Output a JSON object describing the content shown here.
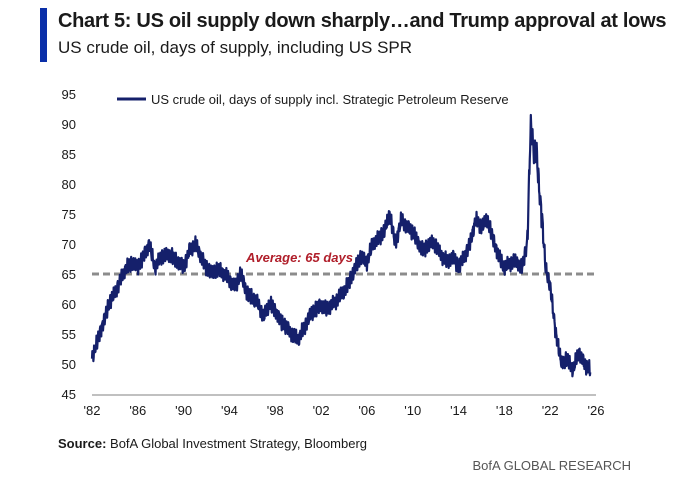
{
  "header": {
    "title": "Chart 5: US oil supply down sharply…and Trump approval at lows",
    "subtitle": "US crude oil, days of supply, including US SPR"
  },
  "footer": {
    "source_label": "Source:",
    "source_text": " BofA Global Investment Strategy, Bloomberg",
    "brand": "BofA GLOBAL RESEARCH"
  },
  "colors": {
    "series": "#15206b",
    "accent": "#0a2fa8",
    "average_line": "#8c8c8c",
    "average_label": "#b01e2a"
  },
  "chart_data": {
    "type": "line",
    "series": [
      {
        "name": "US crude oil, days of supply incl. Strategic Petroleum Reserve",
        "x": [
          1982.0,
          1982.5,
          1983.0,
          1983.5,
          1984.0,
          1984.5,
          1985.0,
          1985.5,
          1986.0,
          1986.5,
          1987.0,
          1987.5,
          1988.0,
          1988.5,
          1989.0,
          1989.5,
          1990.0,
          1990.5,
          1991.0,
          1991.5,
          1992.0,
          1992.5,
          1993.0,
          1993.5,
          1994.0,
          1994.5,
          1995.0,
          1995.5,
          1996.0,
          1996.5,
          1997.0,
          1997.5,
          1998.0,
          1998.5,
          1999.0,
          1999.5,
          2000.0,
          2000.5,
          2001.0,
          2001.5,
          2002.0,
          2002.5,
          2003.0,
          2003.5,
          2004.0,
          2004.5,
          2005.0,
          2005.5,
          2006.0,
          2006.5,
          2007.0,
          2007.5,
          2008.0,
          2008.5,
          2009.0,
          2009.5,
          2010.0,
          2010.5,
          2011.0,
          2011.5,
          2012.0,
          2012.5,
          2013.0,
          2013.5,
          2014.0,
          2014.5,
          2015.0,
          2015.5,
          2016.0,
          2016.5,
          2017.0,
          2017.5,
          2018.0,
          2018.5,
          2019.0,
          2019.5,
          2020.0,
          2020.3,
          2020.6,
          2020.8,
          2021.0,
          2021.3,
          2021.6,
          2022.0,
          2022.5,
          2023.0,
          2023.5,
          2024.0,
          2024.5,
          2025.0,
          2025.5
        ],
        "values": [
          51,
          54,
          57,
          60,
          62,
          64,
          66,
          67,
          66,
          68,
          70,
          66,
          68,
          68,
          68,
          67,
          66,
          69,
          70,
          68,
          66,
          65,
          66,
          65,
          64,
          63,
          65,
          62,
          61,
          60,
          58,
          60,
          59,
          57,
          56,
          55,
          54,
          56,
          58,
          59,
          60,
          59,
          60,
          61,
          62,
          64,
          66,
          68,
          67,
          70,
          71,
          72,
          75,
          70,
          74,
          73,
          72,
          70,
          69,
          70,
          70,
          68,
          67,
          68,
          66,
          68,
          70,
          74,
          73,
          74,
          71,
          68,
          66,
          67,
          67,
          66,
          70,
          90,
          85,
          86,
          80,
          74,
          66,
          63,
          55,
          50,
          51,
          49,
          52,
          50,
          49
        ],
        "color": "#15206b"
      }
    ],
    "average": {
      "value": 65,
      "label": "Average: 65 days"
    },
    "xlim": [
      1982,
      2026
    ],
    "ylim": [
      45,
      95
    ],
    "x_ticks": [
      1982,
      1986,
      1990,
      1994,
      1998,
      2002,
      2006,
      2010,
      2014,
      2018,
      2022,
      2026
    ],
    "x_tick_labels": [
      "'82",
      "'86",
      "'90",
      "'94",
      "'98",
      "'02",
      "'06",
      "'10",
      "'14",
      "'18",
      "'22",
      "'26"
    ],
    "y_ticks": [
      45,
      50,
      55,
      60,
      65,
      70,
      75,
      80,
      85,
      90,
      95
    ],
    "y_tick_labels": [
      "45",
      "50",
      "55",
      "60",
      "65",
      "70",
      "75",
      "80",
      "85",
      "90",
      "95"
    ],
    "grid": false,
    "legend_position": "top-left"
  }
}
